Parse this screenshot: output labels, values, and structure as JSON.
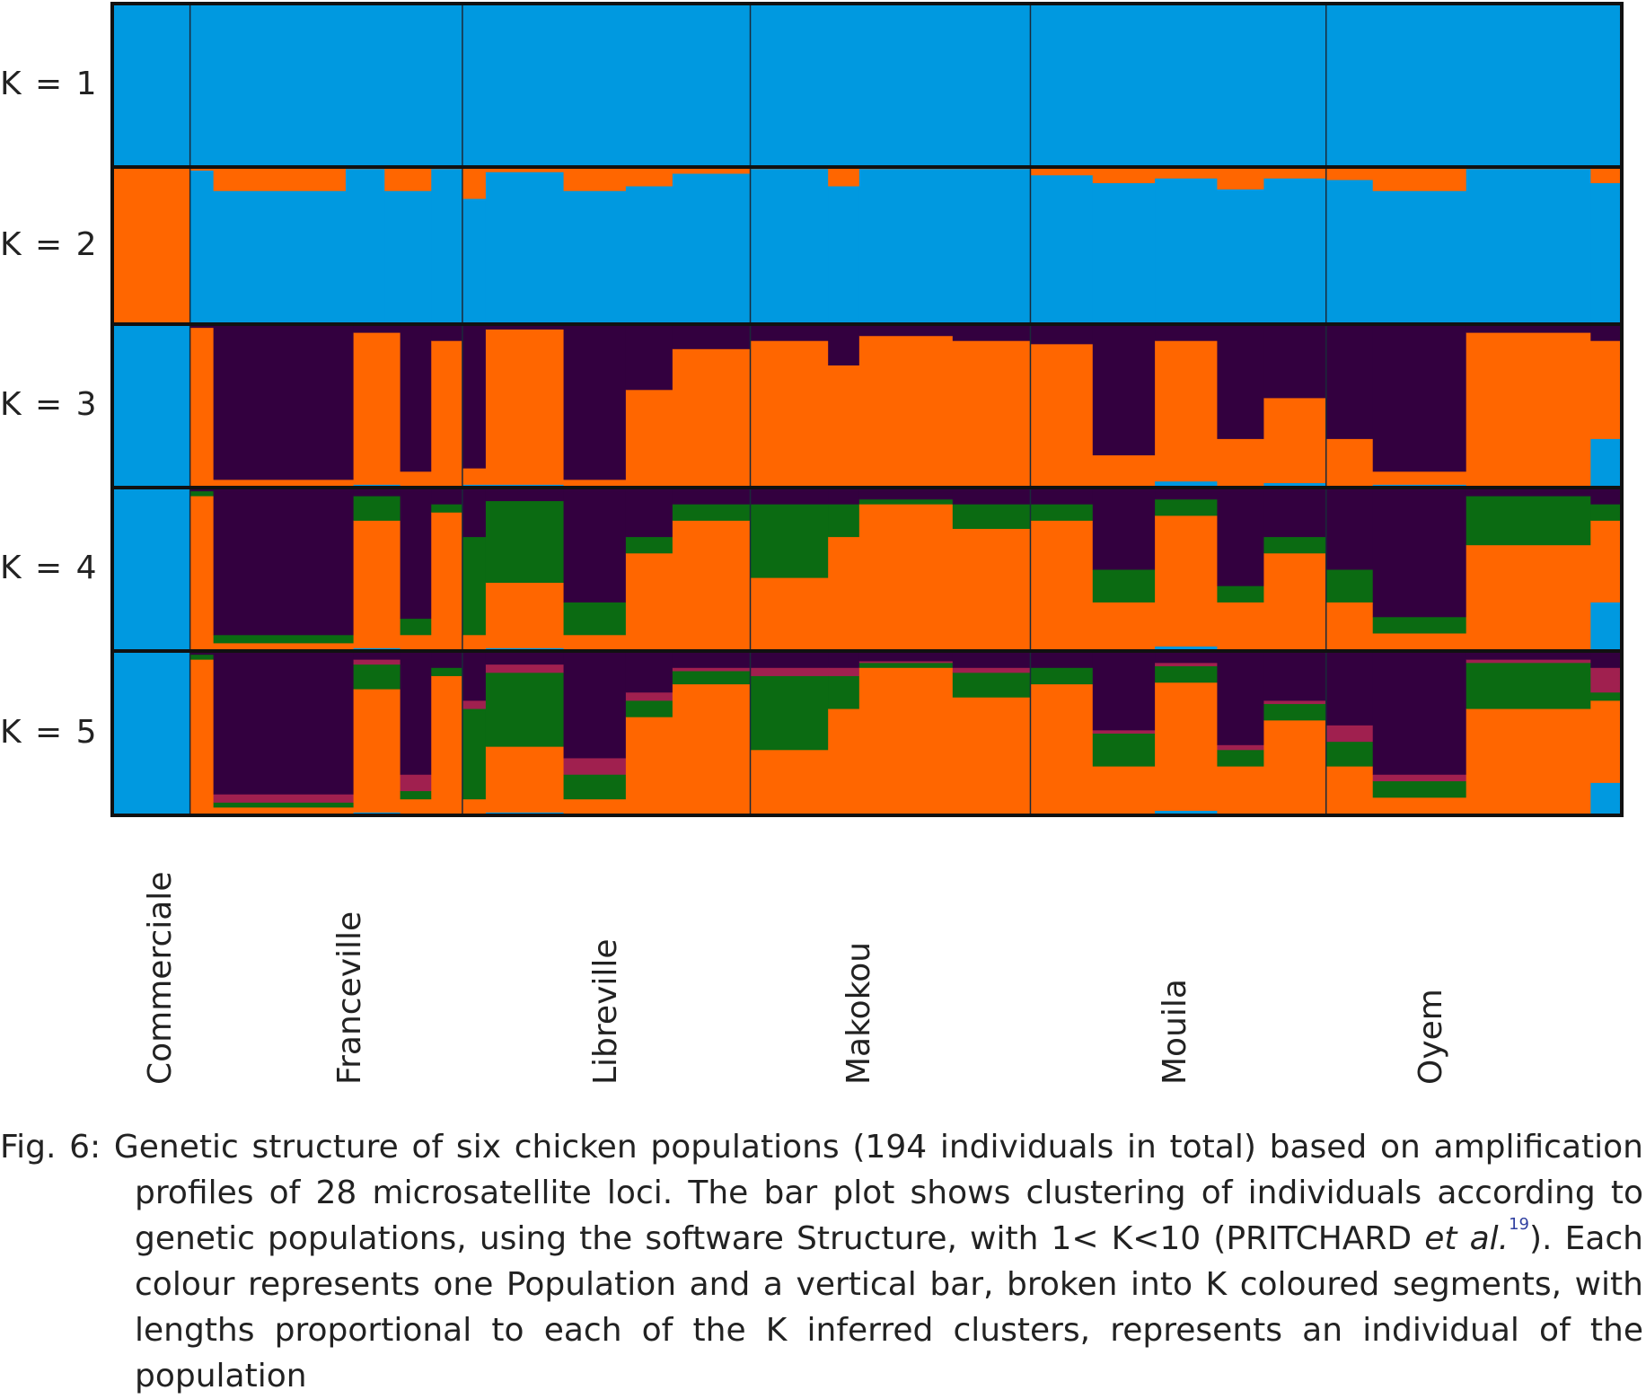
{
  "chart_data": {
    "type": "bar",
    "subtype": "stacked-admixture",
    "populations": [
      "Commerciale",
      "Franceville",
      "Libreville",
      "Makokou",
      "Mouila",
      "Oyem"
    ],
    "individuals_per_population_note_free": true,
    "rows": [
      {
        "label": "K = 1",
        "clusters": [
          "#0099e0"
        ],
        "pops": [
          [
            [
              10,
              [
                1
              ]
            ]
          ],
          [
            [
              35,
              [
                1
              ]
            ]
          ],
          [
            [
              37,
              [
                1
              ]
            ]
          ],
          [
            [
              36,
              [
                1
              ]
            ]
          ],
          [
            [
              38,
              [
                1
              ]
            ]
          ],
          [
            [
              38,
              [
                1
              ]
            ]
          ]
        ]
      },
      {
        "label": "K = 2",
        "clusters": [
          "#0099e0",
          "#ff6600"
        ],
        "pops": [
          [
            [
              10,
              [
                0,
                1
              ]
            ]
          ],
          [
            [
              3,
              [
                0.98,
                0.02
              ]
            ],
            [
              17,
              [
                0.85,
                0.15
              ]
            ],
            [
              5,
              [
                0.99,
                0.01
              ]
            ],
            [
              6,
              [
                0.85,
                0.15
              ]
            ],
            [
              4,
              [
                0.99,
                0.01
              ]
            ]
          ],
          [
            [
              3,
              [
                0.8,
                0.2
              ]
            ],
            [
              10,
              [
                0.97,
                0.03
              ]
            ],
            [
              8,
              [
                0.85,
                0.15
              ]
            ],
            [
              6,
              [
                0.88,
                0.12
              ]
            ],
            [
              10,
              [
                0.96,
                0.04
              ]
            ]
          ],
          [
            [
              10,
              [
                0.99,
                0.01
              ]
            ],
            [
              4,
              [
                0.88,
                0.12
              ]
            ],
            [
              12,
              [
                0.99,
                0.01
              ]
            ],
            [
              10,
              [
                0.99,
                0.01
              ]
            ]
          ],
          [
            [
              8,
              [
                0.95,
                0.05
              ]
            ],
            [
              8,
              [
                0.9,
                0.1
              ]
            ],
            [
              8,
              [
                0.93,
                0.07
              ]
            ],
            [
              6,
              [
                0.86,
                0.14
              ]
            ],
            [
              8,
              [
                0.93,
                0.07
              ]
            ]
          ],
          [
            [
              6,
              [
                0.92,
                0.08
              ]
            ],
            [
              12,
              [
                0.85,
                0.15
              ]
            ],
            [
              16,
              [
                0.99,
                0.01
              ]
            ],
            [
              4,
              [
                0.9,
                0.1
              ]
            ]
          ]
        ]
      },
      {
        "label": "K = 3",
        "clusters": [
          "#0099e0",
          "#ff6600",
          "#33003f"
        ],
        "pops": [
          [
            [
              10,
              [
                1,
                0,
                0
              ]
            ]
          ],
          [
            [
              3,
              [
                0,
                0.98,
                0.02
              ]
            ],
            [
              18,
              [
                0,
                0.05,
                0.95
              ]
            ],
            [
              6,
              [
                0.02,
                0.93,
                0.05
              ]
            ],
            [
              4,
              [
                0,
                0.1,
                0.9
              ]
            ],
            [
              4,
              [
                0,
                0.9,
                0.1
              ]
            ]
          ],
          [
            [
              3,
              [
                0.02,
                0.1,
                0.88
              ]
            ],
            [
              10,
              [
                0.02,
                0.95,
                0.03
              ]
            ],
            [
              8,
              [
                0,
                0.05,
                0.95
              ]
            ],
            [
              6,
              [
                0,
                0.6,
                0.4
              ]
            ],
            [
              10,
              [
                0,
                0.85,
                0.15
              ]
            ]
          ],
          [
            [
              10,
              [
                0,
                0.9,
                0.1
              ]
            ],
            [
              4,
              [
                0,
                0.75,
                0.25
              ]
            ],
            [
              12,
              [
                0.01,
                0.92,
                0.07
              ]
            ],
            [
              10,
              [
                0,
                0.9,
                0.1
              ]
            ]
          ],
          [
            [
              8,
              [
                0,
                0.88,
                0.12
              ]
            ],
            [
              8,
              [
                0,
                0.2,
                0.8
              ]
            ],
            [
              8,
              [
                0.04,
                0.86,
                0.1
              ]
            ],
            [
              6,
              [
                0,
                0.3,
                0.7
              ]
            ],
            [
              8,
              [
                0.03,
                0.52,
                0.45
              ]
            ]
          ],
          [
            [
              6,
              [
                0,
                0.3,
                0.7
              ]
            ],
            [
              12,
              [
                0.02,
                0.08,
                0.9
              ]
            ],
            [
              16,
              [
                0,
                0.95,
                0.05
              ]
            ],
            [
              4,
              [
                0.3,
                0.6,
                0.1
              ]
            ]
          ]
        ]
      },
      {
        "label": "K = 4",
        "clusters": [
          "#0099e0",
          "#ff6600",
          "#0b6b12",
          "#33003f"
        ],
        "pops": [
          [
            [
              10,
              [
                1,
                0,
                0,
                0
              ]
            ]
          ],
          [
            [
              3,
              [
                0,
                0.95,
                0.03,
                0.02
              ]
            ],
            [
              18,
              [
                0,
                0.05,
                0.05,
                0.9
              ]
            ],
            [
              6,
              [
                0.02,
                0.78,
                0.15,
                0.05
              ]
            ],
            [
              4,
              [
                0,
                0.1,
                0.1,
                0.8
              ]
            ],
            [
              4,
              [
                0,
                0.85,
                0.05,
                0.1
              ]
            ]
          ],
          [
            [
              3,
              [
                0,
                0.1,
                0.6,
                0.3
              ]
            ],
            [
              10,
              [
                0.02,
                0.4,
                0.5,
                0.08
              ]
            ],
            [
              8,
              [
                0,
                0.1,
                0.2,
                0.7
              ]
            ],
            [
              6,
              [
                0,
                0.6,
                0.1,
                0.3
              ]
            ],
            [
              10,
              [
                0,
                0.8,
                0.1,
                0.1
              ]
            ]
          ],
          [
            [
              10,
              [
                0,
                0.45,
                0.45,
                0.1
              ]
            ],
            [
              4,
              [
                0,
                0.7,
                0.2,
                0.1
              ]
            ],
            [
              12,
              [
                0,
                0.9,
                0.03,
                0.07
              ]
            ],
            [
              10,
              [
                0,
                0.75,
                0.15,
                0.1
              ]
            ]
          ],
          [
            [
              8,
              [
                0,
                0.8,
                0.1,
                0.1
              ]
            ],
            [
              8,
              [
                0,
                0.3,
                0.2,
                0.5
              ]
            ],
            [
              8,
              [
                0.03,
                0.8,
                0.1,
                0.07
              ]
            ],
            [
              6,
              [
                0,
                0.3,
                0.1,
                0.6
              ]
            ],
            [
              8,
              [
                0,
                0.6,
                0.1,
                0.3
              ]
            ]
          ],
          [
            [
              6,
              [
                0,
                0.3,
                0.2,
                0.5
              ]
            ],
            [
              12,
              [
                0.01,
                0.1,
                0.1,
                0.79
              ]
            ],
            [
              16,
              [
                0,
                0.65,
                0.3,
                0.05
              ]
            ],
            [
              4,
              [
                0.3,
                0.5,
                0.1,
                0.1
              ]
            ]
          ]
        ]
      },
      {
        "label": "K = 5",
        "clusters": [
          "#0099e0",
          "#ff6600",
          "#0b6b12",
          "#a0204f",
          "#33003f"
        ],
        "pops": [
          [
            [
              10,
              [
                1,
                0,
                0,
                0,
                0
              ]
            ]
          ],
          [
            [
              3,
              [
                0,
                0.95,
                0.03,
                0,
                0.02
              ]
            ],
            [
              18,
              [
                0,
                0.05,
                0.03,
                0.05,
                0.87
              ]
            ],
            [
              6,
              [
                0.02,
                0.75,
                0.15,
                0.03,
                0.05
              ]
            ],
            [
              4,
              [
                0,
                0.1,
                0.05,
                0.1,
                0.75
              ]
            ],
            [
              4,
              [
                0,
                0.85,
                0.05,
                0,
                0.1
              ]
            ]
          ],
          [
            [
              3,
              [
                0,
                0.1,
                0.55,
                0.05,
                0.3
              ]
            ],
            [
              10,
              [
                0.02,
                0.4,
                0.45,
                0.05,
                0.08
              ]
            ],
            [
              8,
              [
                0,
                0.1,
                0.15,
                0.1,
                0.65
              ]
            ],
            [
              6,
              [
                0,
                0.6,
                0.1,
                0.05,
                0.25
              ]
            ],
            [
              10,
              [
                0,
                0.8,
                0.08,
                0.02,
                0.1
              ]
            ]
          ],
          [
            [
              10,
              [
                0,
                0.4,
                0.45,
                0.05,
                0.1
              ]
            ],
            [
              4,
              [
                0,
                0.65,
                0.2,
                0.05,
                0.1
              ]
            ],
            [
              12,
              [
                0,
                0.9,
                0.03,
                0.01,
                0.06
              ]
            ],
            [
              10,
              [
                0,
                0.72,
                0.15,
                0.03,
                0.1
              ]
            ]
          ],
          [
            [
              8,
              [
                0,
                0.8,
                0.1,
                0,
                0.1
              ]
            ],
            [
              8,
              [
                0,
                0.3,
                0.2,
                0.02,
                0.48
              ]
            ],
            [
              8,
              [
                0.03,
                0.78,
                0.1,
                0.02,
                0.07
              ]
            ],
            [
              6,
              [
                0,
                0.3,
                0.1,
                0.03,
                0.57
              ]
            ],
            [
              8,
              [
                0,
                0.58,
                0.1,
                0.02,
                0.3
              ]
            ]
          ],
          [
            [
              6,
              [
                0,
                0.3,
                0.15,
                0.1,
                0.45
              ]
            ],
            [
              12,
              [
                0.01,
                0.1,
                0.1,
                0.04,
                0.75
              ]
            ],
            [
              16,
              [
                0,
                0.65,
                0.28,
                0.02,
                0.05
              ]
            ],
            [
              4,
              [
                0.2,
                0.5,
                0.05,
                0.15,
                0.1
              ]
            ]
          ]
        ]
      }
    ]
  },
  "caption": {
    "text_before": "Fig. 6: Genetic structure of six chicken populations (194 individuals in total) based on amplification profiles of 28 microsatellite loci. The bar plot shows clustering of individuals according to genetic populations, using the software Structure, with 1< K<10 (PRITCHARD ",
    "italic": "et al.",
    "ref": "19",
    "text_after": "). Each colour represents one Population and a vertical bar, broken into K coloured segments, with lengths proportional to each of the K inferred clusters, represents an individual of the population"
  }
}
